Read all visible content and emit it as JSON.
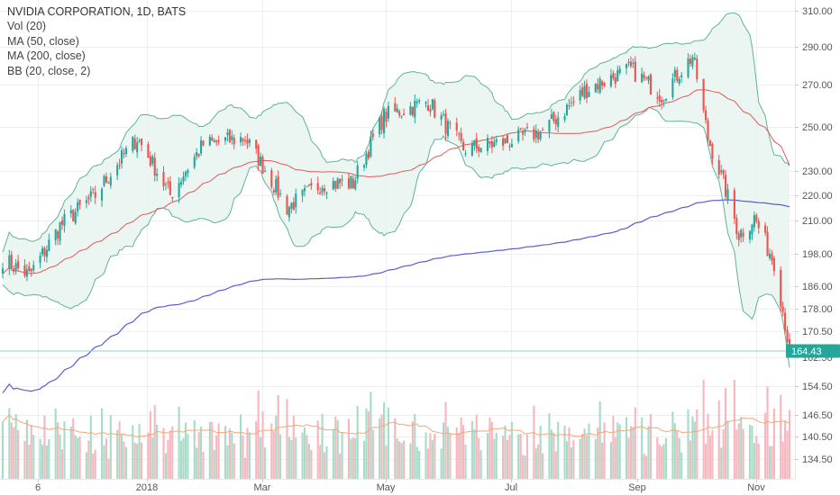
{
  "legend": {
    "title": "NVIDIA CORPORATION, 1D, BATS",
    "vol": "Vol (20)",
    "ma50": "MA (50, close)",
    "ma200": "MA (200, close)",
    "bb": "BB (20, close, 2)"
  },
  "colors": {
    "up": "#26a69a",
    "down": "#ef5350",
    "vol_up": "#a7dcc7",
    "vol_down": "#f6b7bf",
    "ma50": "#e05a5a",
    "ma200": "#5b5bd6",
    "bb_band": "#5fb39a",
    "bb_fill": "#e8f4f0",
    "vol_ma": "#f4a77a",
    "grid": "#eceff3",
    "last_price_line": "#8fd0c8",
    "last_price_badge": "#26a69a"
  },
  "chart_data": {
    "type": "candlestick",
    "title": "NVIDIA CORPORATION, 1D, BATS",
    "x_tick_labels": [
      "6",
      "2018",
      "Mar",
      "May",
      "Jul",
      "Sep",
      "Nov"
    ],
    "y_tick_labels": [
      "310.00",
      "290.00",
      "270.00",
      "250.00",
      "230.00",
      "220.00",
      "210.00",
      "198.00",
      "186.00",
      "178.00",
      "170.50",
      "162.50",
      "154.50",
      "146.50",
      "140.50",
      "134.50"
    ],
    "last_price": "164.43",
    "last_price_value": 164.43,
    "x_range_dates": [
      "2017-11-24",
      "2018-11-16"
    ],
    "y_range": [
      130,
      314
    ],
    "series": [
      {
        "name": "NVDA",
        "kind": "candles",
        "approx_closes": [
          {
            "date": "2017-11-24",
            "value": 196
          },
          {
            "date": "2017-12-06",
            "value": 190
          },
          {
            "date": "2017-12-20",
            "value": 208
          },
          {
            "date": "2018-01-05",
            "value": 220
          },
          {
            "date": "2018-01-24",
            "value": 245
          },
          {
            "date": "2018-02-08",
            "value": 220
          },
          {
            "date": "2018-02-23",
            "value": 242
          },
          {
            "date": "2018-03-14",
            "value": 245
          },
          {
            "date": "2018-04-02",
            "value": 215
          },
          {
            "date": "2018-04-18",
            "value": 225
          },
          {
            "date": "2018-05-02",
            "value": 225
          },
          {
            "date": "2018-05-16",
            "value": 255
          },
          {
            "date": "2018-06-05",
            "value": 262
          },
          {
            "date": "2018-06-21",
            "value": 240
          },
          {
            "date": "2018-07-10",
            "value": 243
          },
          {
            "date": "2018-07-27",
            "value": 248
          },
          {
            "date": "2018-08-16",
            "value": 268
          },
          {
            "date": "2018-09-05",
            "value": 278
          },
          {
            "date": "2018-09-19",
            "value": 265
          },
          {
            "date": "2018-10-03",
            "value": 285
          },
          {
            "date": "2018-10-10",
            "value": 245
          },
          {
            "date": "2018-10-24",
            "value": 205
          },
          {
            "date": "2018-10-31",
            "value": 211
          },
          {
            "date": "2018-11-09",
            "value": 195
          },
          {
            "date": "2018-11-16",
            "value": 164.43
          }
        ]
      },
      {
        "name": "MA (50, close)",
        "kind": "line"
      },
      {
        "name": "MA (200, close)",
        "kind": "line"
      },
      {
        "name": "BB (20, close, 2)",
        "kind": "band"
      },
      {
        "name": "Vol (20)",
        "kind": "volume"
      }
    ],
    "grid": true,
    "legend_position": "top-left"
  }
}
